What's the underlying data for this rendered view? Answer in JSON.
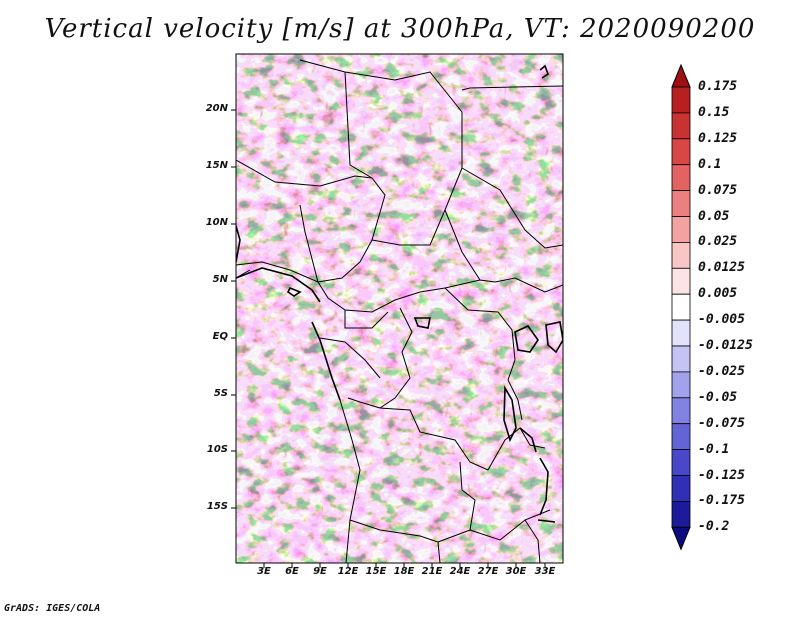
{
  "title": "Vertical velocity [m/s] at 300hPa, VT: 2020090200",
  "footer": "GrADS: IGES/COLA",
  "map": {
    "variable": "Vertical velocity",
    "units": "m/s",
    "level": "300hPa",
    "valid_time": "2020090200",
    "lat_labels": [
      "20N",
      "15N",
      "10N",
      "5N",
      "EQ",
      "5S",
      "10S",
      "15S"
    ],
    "lon_labels": [
      "3E",
      "6E",
      "9E",
      "12E",
      "15E",
      "18E",
      "21E",
      "24E",
      "27E",
      "30E",
      "33E"
    ]
  },
  "colorbar": {
    "levels": [
      "0.175",
      "0.15",
      "0.125",
      "0.1",
      "0.075",
      "0.05",
      "0.025",
      "0.0125",
      "0.005",
      "-0.005",
      "-0.0125",
      "-0.025",
      "-0.05",
      "-0.075",
      "-0.1",
      "-0.125",
      "-0.175",
      "-0.2"
    ],
    "colors": [
      "#a01010",
      "#b62020",
      "#c83232",
      "#d84646",
      "#e36262",
      "#ec8080",
      "#f3a2a2",
      "#f9c6c6",
      "#fde4e4",
      "#ffffff",
      "#e2e2fa",
      "#c4c4f4",
      "#a2a2ec",
      "#8282e2",
      "#6464d6",
      "#4848c8",
      "#3030b4",
      "#1c1c9a",
      "#0c0c80"
    ]
  }
}
